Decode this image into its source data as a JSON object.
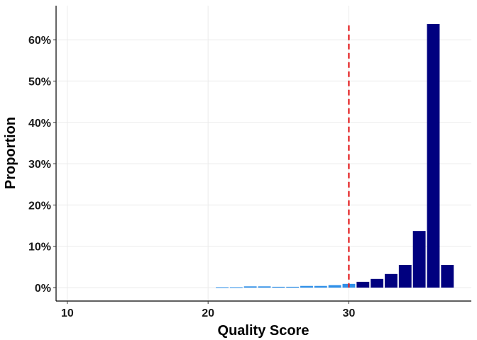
{
  "chart_data": {
    "type": "bar",
    "title": "",
    "xlabel": "Quality Score",
    "ylabel": "Proportion",
    "xlim": [
      9.2,
      38.7
    ],
    "ylim": [
      -0.0325,
      0.6825
    ],
    "x_ticks": [
      10,
      20,
      30
    ],
    "y_ticks": [
      0,
      0.1,
      0.2,
      0.3,
      0.4,
      0.5,
      0.6
    ],
    "y_tick_labels": [
      "0%",
      "10%",
      "20%",
      "30%",
      "40%",
      "50%",
      "60%"
    ],
    "grid": true,
    "threshold": {
      "x": 30,
      "color": "#e31a1c",
      "style": "dashed"
    },
    "colors": {
      "below_threshold": "#2e8fe8",
      "above_threshold": "#00007f"
    },
    "series": [
      {
        "x": [
          21,
          22,
          23,
          24,
          25,
          26,
          27,
          28,
          29,
          30,
          31,
          32,
          33,
          34,
          35,
          36,
          37
        ],
        "values": [
          0.001,
          0.001,
          0.003,
          0.003,
          0.002,
          0.002,
          0.004,
          0.004,
          0.006,
          0.009,
          0.014,
          0.021,
          0.033,
          0.055,
          0.137,
          0.638,
          0.055
        ]
      }
    ]
  }
}
